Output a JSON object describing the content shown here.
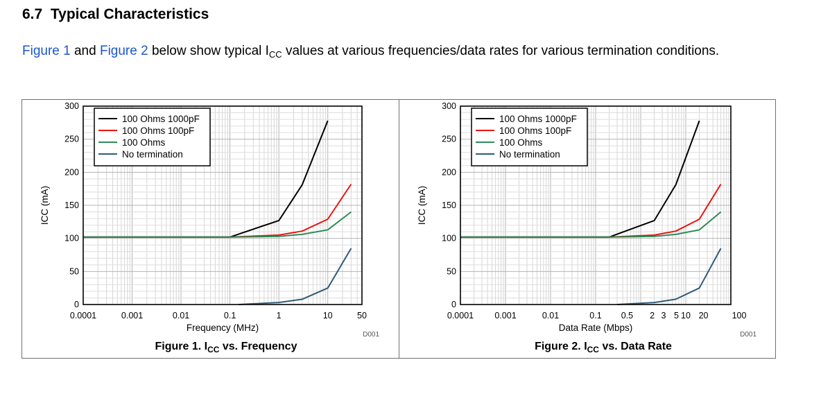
{
  "section": {
    "number": "6.7",
    "title": "Typical Characteristics"
  },
  "intro": {
    "link1": "Figure 1",
    "and": "and",
    "link2": "Figure 2",
    "text_a": "below show typical I",
    "sub": "CC",
    "text_b": "values at various frequencies/data rates for various termination conditions."
  },
  "colors": {
    "series_1000pf": "#000000",
    "series_100pf": "#e8140f",
    "series_100ohm": "#2e8b57",
    "series_none": "#2f5a78",
    "link": "#1a57c9"
  },
  "captions": [
    {
      "prefix": "Figure 1. I",
      "sub": "CC",
      "suffix": "vs. Frequency"
    },
    {
      "prefix": "Figure 2. I",
      "sub": "CC",
      "suffix": "vs. Data Rate"
    }
  ],
  "chart_data": [
    {
      "type": "line",
      "x_scale": "log",
      "xlim": [
        0.0001,
        50
      ],
      "ylim": [
        0,
        300
      ],
      "xlabel": "Frequency (MHz)",
      "ylabel": "ICC (mA)",
      "x_ticks": [
        0.0001,
        0.001,
        0.01,
        0.1,
        1,
        10,
        50
      ],
      "x_tick_labels": [
        "0.0001",
        "0.001",
        "0.01",
        "0.1",
        "1",
        "10",
        "50"
      ],
      "y_ticks": [
        0,
        50,
        100,
        150,
        200,
        250,
        300
      ],
      "y_tick_labels": [
        "0",
        "50",
        "100",
        "150",
        "200",
        "250",
        "300"
      ],
      "grid": true,
      "legend": "top-left",
      "tag": "D001",
      "series": [
        {
          "name": "100 Ohms 1000pF",
          "x": [
            0.0001,
            0.1,
            1,
            3,
            10
          ],
          "y": [
            102,
            102,
            127,
            181,
            278
          ]
        },
        {
          "name": "100 Ohms 100pF",
          "x": [
            0.0001,
            0.1,
            1,
            3,
            10,
            30
          ],
          "y": [
            102,
            102,
            105,
            111,
            129,
            182
          ]
        },
        {
          "name": "100 Ohms",
          "x": [
            0.0001,
            0.1,
            1,
            3,
            10,
            30
          ],
          "y": [
            102,
            102,
            103,
            106,
            113,
            140
          ]
        },
        {
          "name": "No termination",
          "x": [
            0.15,
            1,
            3,
            10,
            30
          ],
          "y": [
            0,
            3,
            8,
            25,
            85
          ]
        }
      ]
    },
    {
      "type": "line",
      "x_scale": "log",
      "xlim": [
        0.0001,
        100
      ],
      "ylim": [
        0,
        300
      ],
      "xlabel": "Data Rate (Mbps)",
      "ylabel": "ICC (mA)",
      "x_ticks": [
        0.0001,
        0.001,
        0.01,
        0.1,
        0.5,
        2,
        3,
        5,
        10,
        20,
        100
      ],
      "x_tick_labels": [
        "0.0001",
        "0.001",
        "0.01",
        "0.1",
        "0.5",
        "2",
        "3",
        "5",
        "10",
        "20",
        "100"
      ],
      "y_ticks": [
        0,
        50,
        100,
        150,
        200,
        250,
        300
      ],
      "y_tick_labels": [
        "0",
        "50",
        "100",
        "150",
        "200",
        "250",
        "300"
      ],
      "grid": true,
      "legend": "top-left",
      "tag": "D001",
      "series": [
        {
          "name": "100 Ohms 1000pF",
          "x": [
            0.0001,
            0.2,
            2,
            6,
            20
          ],
          "y": [
            102,
            102,
            127,
            181,
            278
          ]
        },
        {
          "name": "100 Ohms 100pF",
          "x": [
            0.0001,
            0.2,
            2,
            6,
            20,
            60
          ],
          "y": [
            102,
            102,
            105,
            111,
            129,
            182
          ]
        },
        {
          "name": "100 Ohms",
          "x": [
            0.0001,
            0.2,
            2,
            6,
            20,
            60
          ],
          "y": [
            102,
            102,
            103,
            106,
            113,
            140
          ]
        },
        {
          "name": "No termination",
          "x": [
            0.3,
            2,
            6,
            20,
            60
          ],
          "y": [
            0,
            3,
            8,
            25,
            85
          ]
        }
      ]
    }
  ]
}
